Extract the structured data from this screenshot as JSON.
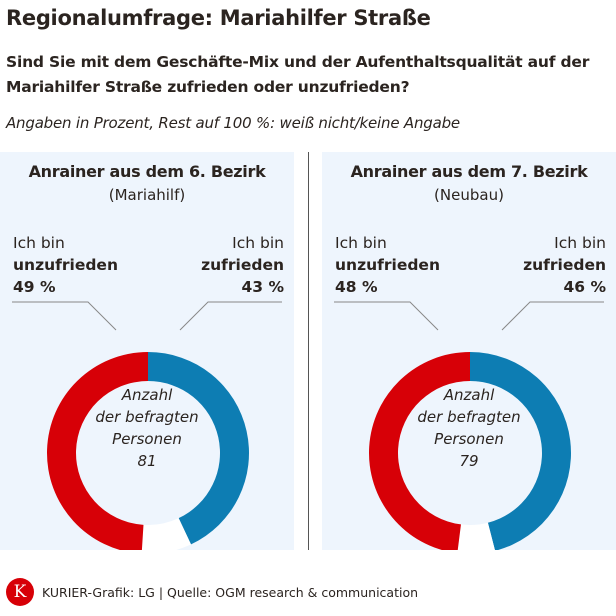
{
  "title": "Regionalumfrage: Mariahilfer Straße",
  "question": "Sind Sie mit dem Geschäfte-Mix und der Aufenthaltsqualität auf der Mariahilfer Straße zufrieden oder unzufrieden?",
  "note": "Angaben in Prozent, Rest auf 100 %: weiß nicht/keine Angabe",
  "chart_data": [
    {
      "type": "pie",
      "title": "Anrainer aus dem 6. Bezirk",
      "subtitle": "(Mariahilf)",
      "slices": [
        {
          "label_pre": "Ich bin",
          "label": "zufrieden",
          "value": 43,
          "value_label": "43 %",
          "color": "#0d7db3"
        },
        {
          "label": "weiß nicht/keine Angabe",
          "value": 8,
          "color": "#ffffff"
        },
        {
          "label_pre": "Ich bin",
          "label": "unzufrieden",
          "value": 49,
          "value_label": "49 %",
          "color": "#d70007"
        }
      ],
      "center_text": [
        "Anzahl",
        "der befragten",
        "Personen",
        "81"
      ]
    },
    {
      "type": "pie",
      "title": "Anrainer aus dem 7. Bezirk",
      "subtitle": "(Neubau)",
      "slices": [
        {
          "label_pre": "Ich bin",
          "label": "zufrieden",
          "value": 46,
          "value_label": "46 %",
          "color": "#0d7db3"
        },
        {
          "label": "weiß nicht/keine Angabe",
          "value": 6,
          "color": "#ffffff"
        },
        {
          "label_pre": "Ich bin",
          "label": "unzufrieden",
          "value": 48,
          "value_label": "48 %",
          "color": "#d70007"
        }
      ],
      "center_text": [
        "Anzahl",
        "der befragten",
        "Personen",
        "79"
      ]
    }
  ],
  "footer": {
    "logo": "K",
    "text": "KURIER-Grafik: LG | Quelle: OGM research & communication"
  }
}
